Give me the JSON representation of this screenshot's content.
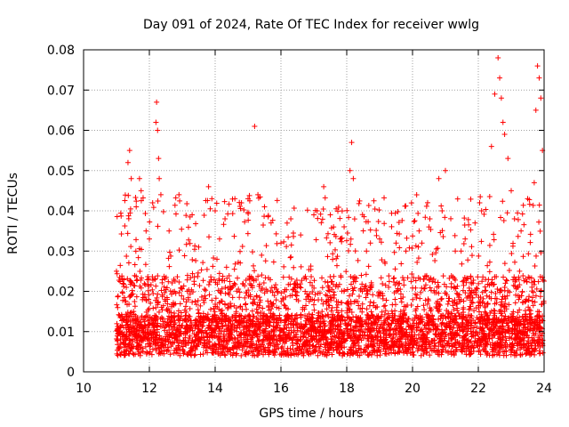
{
  "chart_data": {
    "type": "scatter",
    "title": "Day 091 of 2024, Rate Of TEC Index for receiver wwlg",
    "xlabel": "GPS time / hours",
    "ylabel": "ROTI / TECUs",
    "xlim": [
      10,
      24
    ],
    "ylim": [
      0,
      0.08
    ],
    "xticks": [
      "10",
      "12",
      "14",
      "16",
      "18",
      "20",
      "22",
      "24"
    ],
    "yticks": [
      "0",
      "0.01",
      "0.02",
      "0.03",
      "0.04",
      "0.05",
      "0.06",
      "0.07",
      "0.08"
    ],
    "grid": true,
    "marker": "+",
    "color": "#ff0000",
    "series": [
      {
        "name": "ROTI",
        "x": [
          11.0,
          11.2,
          11.35,
          11.4,
          11.45,
          11.6,
          11.7,
          11.75,
          11.9,
          12.0,
          12.1,
          12.2,
          12.22,
          12.25,
          12.28,
          12.3,
          12.35,
          12.6,
          12.9,
          13.3,
          13.5,
          13.8,
          13.9,
          14.0,
          14.3,
          14.6,
          14.8,
          15.0,
          15.2,
          15.3,
          15.5,
          15.7,
          16.0,
          16.3,
          16.6,
          17.0,
          17.1,
          17.3,
          17.5,
          17.6,
          17.8,
          18.1,
          18.15,
          18.2,
          18.6,
          19.0,
          19.5,
          19.8,
          20.2,
          20.5,
          20.8,
          20.9,
          21.0,
          21.3,
          21.6,
          21.9,
          22.1,
          22.4,
          22.5,
          22.6,
          22.65,
          22.7,
          22.75,
          22.8,
          22.9,
          23.0,
          23.1,
          23.3,
          23.5,
          23.7,
          23.75,
          23.8,
          23.85,
          23.9,
          23.95
        ],
        "y": [
          0.025,
          0.022,
          0.052,
          0.055,
          0.048,
          0.041,
          0.048,
          0.045,
          0.035,
          0.033,
          0.042,
          0.062,
          0.067,
          0.06,
          0.053,
          0.048,
          0.044,
          0.035,
          0.044,
          0.039,
          0.031,
          0.046,
          0.043,
          0.04,
          0.038,
          0.043,
          0.042,
          0.043,
          0.061,
          0.044,
          0.041,
          0.037,
          0.032,
          0.038,
          0.034,
          0.039,
          0.04,
          0.046,
          0.039,
          0.036,
          0.033,
          0.05,
          0.057,
          0.048,
          0.03,
          0.033,
          0.032,
          0.03,
          0.035,
          0.036,
          0.048,
          0.04,
          0.05,
          0.03,
          0.033,
          0.037,
          0.04,
          0.056,
          0.069,
          0.078,
          0.073,
          0.068,
          0.062,
          0.059,
          0.053,
          0.045,
          0.038,
          0.035,
          0.043,
          0.047,
          0.065,
          0.076,
          0.073,
          0.068,
          0.055
        ],
        "dense_band": {
          "x_range": [
            11.0,
            24.0
          ],
          "y_range": [
            0.002,
            0.03
          ],
          "typical": 0.01,
          "note": "thousands of overlapping + markers between roughly 0.002 and 0.03 TECU"
        }
      }
    ]
  }
}
